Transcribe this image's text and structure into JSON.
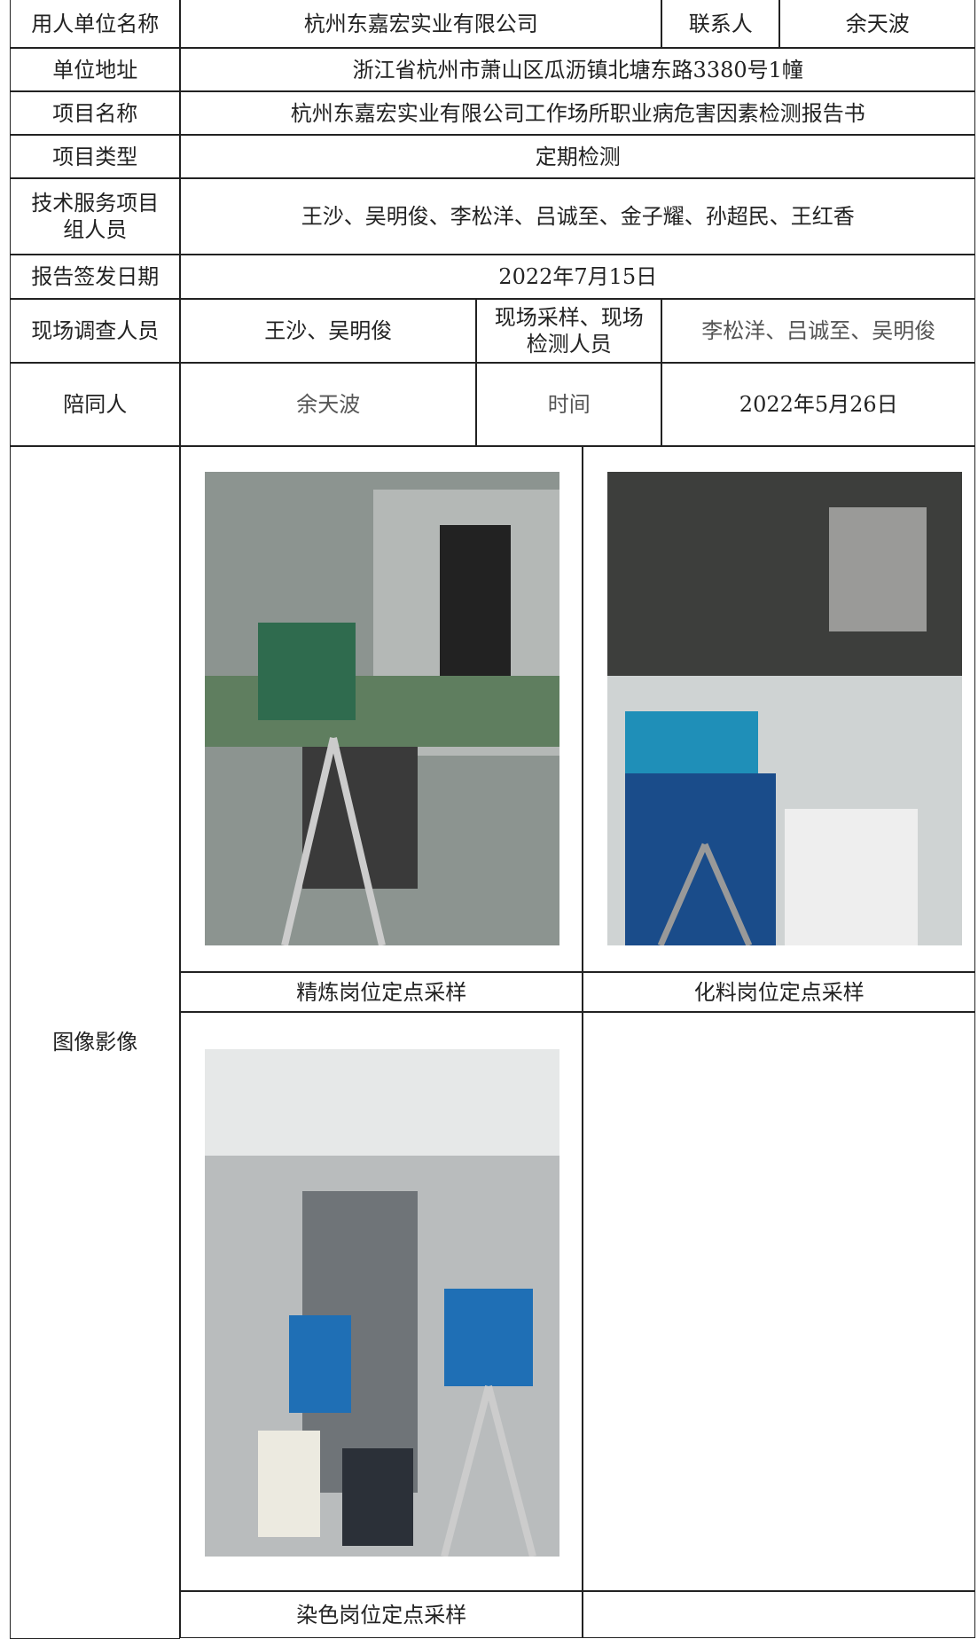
{
  "table": {
    "rows": [
      {
        "label": "用人单位名称",
        "value": "杭州东嘉宏实业有限公司",
        "label2": "联系人",
        "value2": "余天波"
      },
      {
        "label": "单位地址",
        "value": "浙江省杭州市萧山区瓜沥镇北塘东路3380号1幢"
      },
      {
        "label": "项目名称",
        "value": "杭州东嘉宏实业有限公司工作场所职业病危害因素检测报告书"
      },
      {
        "label": "项目类型",
        "value": "定期检测"
      },
      {
        "label": "技术服务项目组人员",
        "value": "王沙、吴明俊、李松洋、吕诚至、金子耀、孙超民、王红香"
      },
      {
        "label": "报告签发日期",
        "value": "2022年7月15日"
      },
      {
        "label": "现场调查人员",
        "value": "王沙、吴明俊",
        "label2": "现场采样、现场检测人员",
        "value2": "李松洋、吕诚至、吴明俊"
      },
      {
        "label": "陪同人",
        "value": "余天波",
        "label2": "时间",
        "value2": "2022年5月26日"
      }
    ],
    "images": {
      "label": "图像影像",
      "captions": [
        "精炼岗位定点采样",
        "化料岗位定点采样",
        "染色岗位定点采样"
      ]
    }
  }
}
